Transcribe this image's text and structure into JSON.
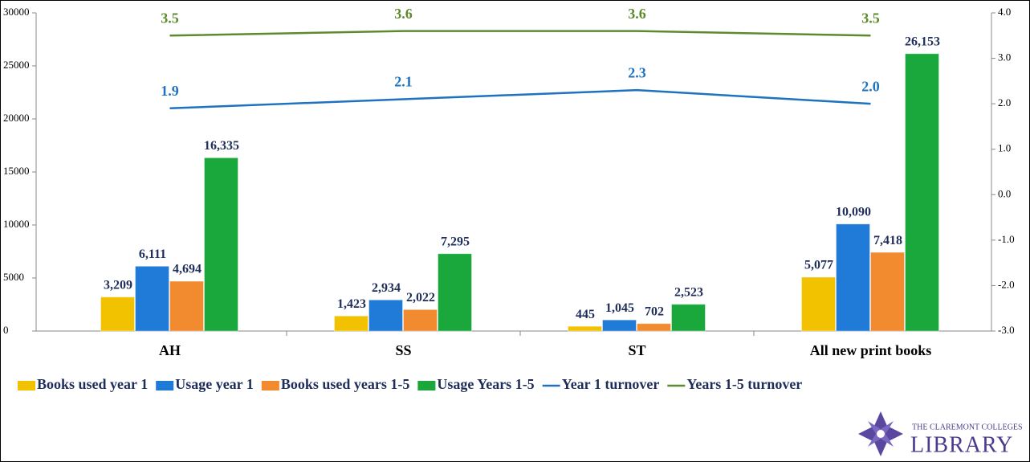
{
  "chart_data": {
    "type": "bar",
    "categories": [
      "AH",
      "SS",
      "ST",
      "All new print books"
    ],
    "ylim": [
      0,
      30000
    ],
    "yticks": [
      0,
      5000,
      10000,
      15000,
      20000,
      25000,
      30000
    ],
    "y2lim": [
      -3,
      4
    ],
    "y2ticks": [
      {
        "value": -3,
        "label": "-3.0"
      },
      {
        "value": -2,
        "label": "-2.0"
      },
      {
        "value": -1,
        "label": "-1.0"
      },
      {
        "value": 0,
        "label": "0.0"
      },
      {
        "value": 1,
        "label": "1.0"
      },
      {
        "value": 2,
        "label": "2.0"
      },
      {
        "value": 3,
        "label": "3.0"
      },
      {
        "value": 4,
        "label": "4.0"
      }
    ],
    "legend": "bottom",
    "series": [
      {
        "name": "Books used year 1",
        "type": "bar",
        "color": "#f2c200",
        "values": [
          3209,
          1423,
          445,
          5077
        ],
        "value_labels": [
          "3,209",
          "1,423",
          "445",
          "5,077"
        ]
      },
      {
        "name": "Usage year 1",
        "type": "bar",
        "color": "#1f7ad8",
        "values": [
          6111,
          2934,
          1045,
          10090
        ],
        "value_labels": [
          "6,111",
          "2,934",
          "1,045",
          "10,090"
        ]
      },
      {
        "name": "Books used years 1-5",
        "type": "bar",
        "color": "#f28a30",
        "values": [
          4694,
          2022,
          702,
          7418
        ],
        "value_labels": [
          "4,694",
          "2,022",
          "702",
          "7,418"
        ]
      },
      {
        "name": "Usage Years 1-5",
        "type": "bar",
        "color": "#1aa83c",
        "values": [
          16335,
          7295,
          2523,
          26153
        ],
        "value_labels": [
          "16,335",
          "7,295",
          "2,523",
          "26,153"
        ]
      },
      {
        "name": "Year 1 turnover",
        "type": "line",
        "axis": "y2",
        "color": "#1f72c0",
        "values": [
          1.9,
          2.1,
          2.3,
          2.0
        ],
        "value_labels": [
          "1.9",
          "2.1",
          "2.3",
          "2.0"
        ]
      },
      {
        "name": "Years 1-5 turnover",
        "type": "line",
        "axis": "y2",
        "color": "#5e8a2e",
        "values": [
          3.5,
          3.6,
          3.6,
          3.5
        ],
        "value_labels": [
          "3.5",
          "3.6",
          "3.6",
          "3.5"
        ]
      }
    ]
  },
  "logo": {
    "line1": "THE CLAREMONT COLLEGES",
    "line2": "LIBRARY"
  }
}
